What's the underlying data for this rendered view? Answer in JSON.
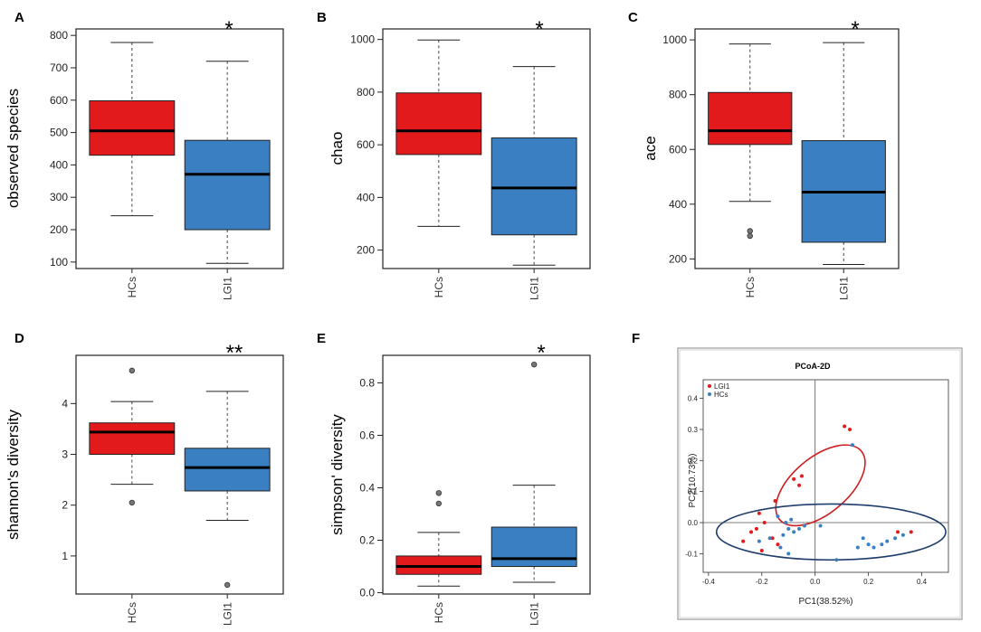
{
  "colors": {
    "hcs": "#e31a1c",
    "lgi1": "#3a7fc1",
    "median": "#000000",
    "ellipse_red": "#cc1f1f",
    "ellipse_blue": "#1f3d6b"
  },
  "chart_data": [
    {
      "panel": "A",
      "type": "box",
      "ylabel": "observed species",
      "significance": "*",
      "ylim": [
        80,
        820
      ],
      "yticks": [
        100,
        200,
        300,
        400,
        500,
        600,
        700,
        800
      ],
      "categories": [
        "HCs",
        "LGI1"
      ],
      "boxes": [
        {
          "name": "HCs",
          "whisker_low": 243,
          "q1": 430,
          "median": 505,
          "q3": 598,
          "whisker_high": 778,
          "outliers": []
        },
        {
          "name": "LGI1",
          "whisker_low": 96,
          "q1": 200,
          "median": 371,
          "q3": 476,
          "whisker_high": 720,
          "outliers": []
        }
      ]
    },
    {
      "panel": "B",
      "type": "box",
      "ylabel": "chao",
      "significance": "*",
      "ylim": [
        130,
        1040
      ],
      "yticks": [
        200,
        400,
        600,
        800,
        1000
      ],
      "categories": [
        "HCs",
        "LGI1"
      ],
      "boxes": [
        {
          "name": "HCs",
          "whisker_low": 290,
          "q1": 563,
          "median": 653,
          "q3": 797,
          "whisker_high": 998,
          "outliers": []
        },
        {
          "name": "LGI1",
          "whisker_low": 143,
          "q1": 258,
          "median": 436,
          "q3": 626,
          "whisker_high": 897,
          "outliers": []
        }
      ]
    },
    {
      "panel": "C",
      "type": "box",
      "ylabel": "ace",
      "significance": "*",
      "ylim": [
        165,
        1040
      ],
      "yticks": [
        200,
        400,
        600,
        800,
        1000
      ],
      "categories": [
        "HCs",
        "LGI1"
      ],
      "boxes": [
        {
          "name": "HCs",
          "whisker_low": 410,
          "q1": 618,
          "median": 668,
          "q3": 808,
          "whisker_high": 985,
          "outliers": [
            302,
            284
          ]
        },
        {
          "name": "LGI1",
          "whisker_low": 180,
          "q1": 261,
          "median": 444,
          "q3": 632,
          "whisker_high": 990,
          "outliers": []
        }
      ]
    },
    {
      "panel": "D",
      "type": "box",
      "ylabel": "shannon's diversity",
      "significance": "**",
      "ylim": [
        0.25,
        4.95
      ],
      "yticks": [
        1,
        2,
        3,
        4
      ],
      "categories": [
        "HCs",
        "LGI1"
      ],
      "boxes": [
        {
          "name": "HCs",
          "whisker_low": 2.41,
          "q1": 3.0,
          "median": 3.44,
          "q3": 3.62,
          "whisker_high": 4.04,
          "outliers": [
            4.65,
            2.05
          ]
        },
        {
          "name": "LGI1",
          "whisker_low": 1.7,
          "q1": 2.28,
          "median": 2.74,
          "q3": 3.12,
          "whisker_high": 4.24,
          "outliers": [
            0.43
          ]
        }
      ]
    },
    {
      "panel": "E",
      "type": "box",
      "ylabel": "simpson' diversity",
      "significance": "*",
      "ylim": [
        -0.005,
        0.905
      ],
      "yticks": [
        0.0,
        0.2,
        0.4,
        0.6,
        0.8
      ],
      "categories": [
        "HCs",
        "LGI1"
      ],
      "boxes": [
        {
          "name": "HCs",
          "whisker_low": 0.025,
          "q1": 0.07,
          "median": 0.1,
          "q3": 0.14,
          "whisker_high": 0.23,
          "outliers": [
            0.38,
            0.34
          ]
        },
        {
          "name": "LGI1",
          "whisker_low": 0.04,
          "q1": 0.1,
          "median": 0.13,
          "q3": 0.25,
          "whisker_high": 0.41,
          "outliers": [
            0.87
          ]
        }
      ]
    },
    {
      "panel": "F",
      "type": "scatter",
      "title": "PCoA-2D",
      "xlabel": "PC1(38.52%)",
      "ylabel": "PC2(10.73%)",
      "xlim": [
        -0.42,
        0.5
      ],
      "ylim": [
        -0.16,
        0.46
      ],
      "xticks": [
        -0.4,
        -0.2,
        0.0,
        0.2,
        0.4
      ],
      "yticks": [
        -0.1,
        0.0,
        0.1,
        0.2,
        0.3,
        0.4
      ],
      "legend": {
        "position": "top-left",
        "entries": [
          "LGI1",
          "HCs"
        ]
      },
      "series": [
        {
          "name": "LGI1",
          "points": [
            [
              0.11,
              0.31
            ],
            [
              0.13,
              0.3
            ],
            [
              -0.05,
              0.15
            ],
            [
              -0.08,
              0.14
            ],
            [
              -0.06,
              0.12
            ],
            [
              -0.15,
              0.07
            ],
            [
              -0.21,
              0.03
            ],
            [
              -0.19,
              0.0
            ],
            [
              -0.22,
              -0.02
            ],
            [
              -0.16,
              -0.05
            ],
            [
              -0.24,
              -0.03
            ],
            [
              -0.27,
              -0.06
            ],
            [
              -0.2,
              -0.09
            ],
            [
              -0.14,
              -0.07
            ],
            [
              0.31,
              -0.03
            ],
            [
              0.36,
              -0.03
            ]
          ]
        },
        {
          "name": "HCs",
          "points": [
            [
              0.14,
              0.25
            ],
            [
              -0.14,
              0.02
            ],
            [
              -0.11,
              0.0
            ],
            [
              -0.09,
              0.01
            ],
            [
              -0.1,
              -0.02
            ],
            [
              -0.12,
              -0.04
            ],
            [
              -0.17,
              -0.05
            ],
            [
              -0.08,
              -0.03
            ],
            [
              -0.06,
              -0.02
            ],
            [
              -0.21,
              -0.06
            ],
            [
              -0.13,
              -0.08
            ],
            [
              -0.04,
              -0.01
            ],
            [
              0.02,
              -0.01
            ],
            [
              0.08,
              -0.12
            ],
            [
              -0.1,
              -0.1
            ],
            [
              0.18,
              -0.05
            ],
            [
              0.2,
              -0.07
            ],
            [
              0.22,
              -0.08
            ],
            [
              0.25,
              -0.07
            ],
            [
              0.27,
              -0.06
            ],
            [
              0.3,
              -0.05
            ],
            [
              0.33,
              -0.04
            ],
            [
              0.16,
              -0.08
            ]
          ]
        }
      ],
      "ellipses": [
        {
          "name": "LGI1",
          "center": [
            0.02,
            0.12
          ],
          "rx": 0.2,
          "ry": 0.09,
          "angle_deg": 40
        },
        {
          "name": "HCs",
          "center": [
            0.06,
            -0.03
          ],
          "rx": 0.43,
          "ry": 0.09,
          "angle_deg": 0
        }
      ]
    }
  ]
}
